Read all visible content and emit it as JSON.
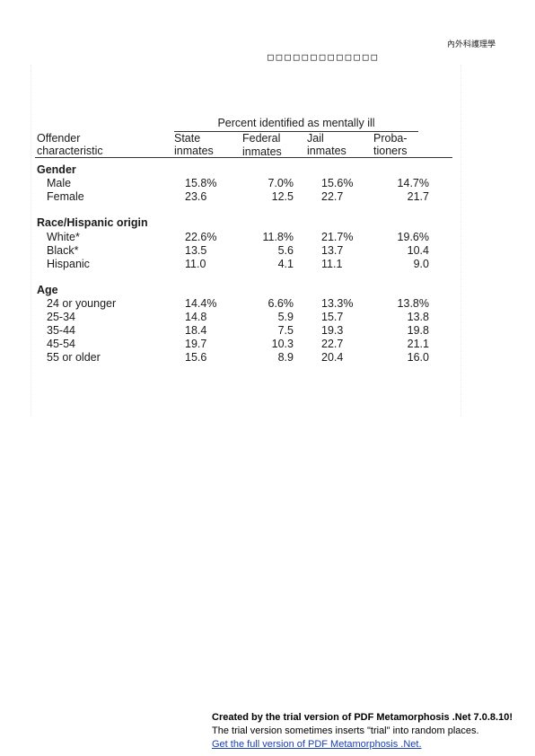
{
  "page_header": {
    "top_right_text": "內外科護理學",
    "box_glyphs": "□□□□□□□□□□□□□"
  },
  "table": {
    "span_header": "Percent identified as mentally ill",
    "row_header": [
      "Offender",
      "characteristic"
    ],
    "columns": [
      {
        "line1": "State",
        "line2": "inmates"
      },
      {
        "line1": "Federal",
        "line2": "inmates"
      },
      {
        "line1": "Jail",
        "line2": "inmates"
      },
      {
        "line1": "Proba-",
        "line2": "tioners"
      }
    ],
    "sections": [
      {
        "title": "Gender",
        "rows": [
          {
            "label": "Male",
            "values": [
              "15.8%",
              "7.0%",
              "15.6%",
              "14.7%"
            ]
          },
          {
            "label": "Female",
            "values": [
              "23.6",
              "12.5",
              "22.7",
              "21.7"
            ]
          }
        ]
      },
      {
        "title": "Race/Hispanic origin",
        "rows": [
          {
            "label": "White*",
            "values": [
              "22.6%",
              "11.8%",
              "21.7%",
              "19.6%"
            ]
          },
          {
            "label": "Black*",
            "values": [
              "13.5",
              "5.6",
              "13.7",
              "10.4"
            ]
          },
          {
            "label": "Hispanic",
            "values": [
              "11.0",
              "4.1",
              "11.1",
              "9.0"
            ]
          }
        ]
      },
      {
        "title": "Age",
        "rows": [
          {
            "label": "24 or younger",
            "values": [
              "14.4%",
              "6.6%",
              "13.3%",
              "13.8%"
            ]
          },
          {
            "label": "25-34",
            "values": [
              "14.8",
              "5.9",
              "15.7",
              "13.8"
            ]
          },
          {
            "label": "35-44",
            "values": [
              "18.4",
              "7.5",
              "19.3",
              "19.8"
            ]
          },
          {
            "label": "45-54",
            "values": [
              "19.7",
              "10.3",
              "22.7",
              "21.1"
            ]
          },
          {
            "label": "55 or older",
            "values": [
              "15.6",
              "8.9",
              "20.4",
              "16.0"
            ]
          }
        ]
      }
    ]
  },
  "trial_notice": {
    "line1": "Created by the trial version of PDF Metamorphosis .Net 7.0.8.10!",
    "line2": "The trial version sometimes inserts \"trial\" into random places.",
    "link": "Get the full version of PDF Metamorphosis .Net."
  }
}
